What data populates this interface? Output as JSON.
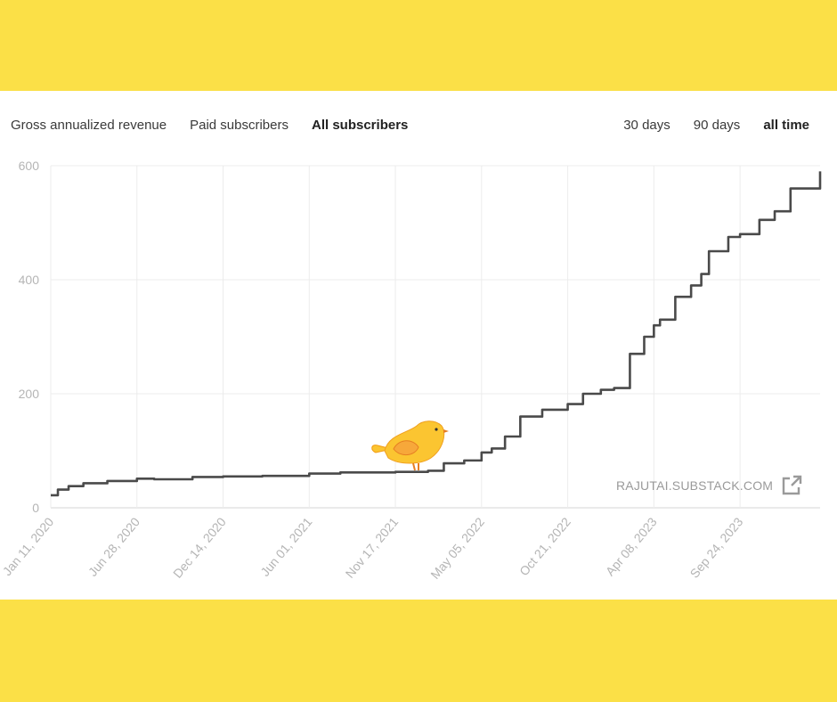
{
  "tabs": [
    {
      "label": "Gross annualized revenue",
      "active": false
    },
    {
      "label": "Paid subscribers",
      "active": false
    },
    {
      "label": "All subscribers",
      "active": true
    }
  ],
  "ranges": [
    {
      "label": "30 days",
      "active": false
    },
    {
      "label": "90 days",
      "active": false
    },
    {
      "label": "all time",
      "active": true
    }
  ],
  "watermark": {
    "text": "RAJUTAI.SUBSTACK.COM",
    "icon": "external-link-icon"
  },
  "mascot": {
    "icon": "bird-icon",
    "color": "#fbc531"
  },
  "colors": {
    "line": "#4a4a4a",
    "grid": "#ececec",
    "axis_text": "#b5b5b5",
    "frame": "#fbe047"
  },
  "chart_data": {
    "type": "line",
    "title": "",
    "xlabel": "",
    "ylabel": "",
    "ylim": [
      0,
      600
    ],
    "yticks": [
      0,
      200,
      400,
      600
    ],
    "xticks": [
      "Jan 11, 2020",
      "Jun 28, 2020",
      "Dec 14, 2020",
      "Jun 01, 2021",
      "Nov 17, 2021",
      "May 05, 2022",
      "Oct 21, 2022",
      "Apr 08, 2023",
      "Sep 24, 2023"
    ],
    "xlim": [
      "2020-01-11",
      "2024-02-28"
    ],
    "grid": true,
    "series": [
      {
        "x": [
          "2020-01-11",
          "2020-01-25",
          "2020-02-15",
          "2020-03-15",
          "2020-05-01",
          "2020-06-28",
          "2020-08-01",
          "2020-10-15",
          "2020-12-14",
          "2021-03-01",
          "2021-06-01",
          "2021-08-01",
          "2021-11-17",
          "2022-01-20",
          "2022-02-20",
          "2022-04-01",
          "2022-05-05",
          "2022-05-25",
          "2022-06-20",
          "2022-07-20",
          "2022-09-01",
          "2022-10-21",
          "2022-11-20",
          "2022-12-25",
          "2023-01-20",
          "2023-02-20",
          "2023-03-20",
          "2023-04-08",
          "2023-04-20",
          "2023-05-20",
          "2023-06-20",
          "2023-07-10",
          "2023-07-25",
          "2023-09-01",
          "2023-09-24",
          "2023-11-01",
          "2023-12-01",
          "2024-01-01",
          "2024-02-28"
        ],
        "y": [
          22,
          32,
          38,
          43,
          47,
          51,
          50,
          54,
          55,
          56,
          60,
          62,
          63,
          65,
          78,
          83,
          97,
          104,
          125,
          160,
          172,
          182,
          200,
          207,
          210,
          270,
          300,
          320,
          330,
          370,
          390,
          410,
          450,
          475,
          480,
          505,
          520,
          560,
          590
        ]
      }
    ]
  }
}
